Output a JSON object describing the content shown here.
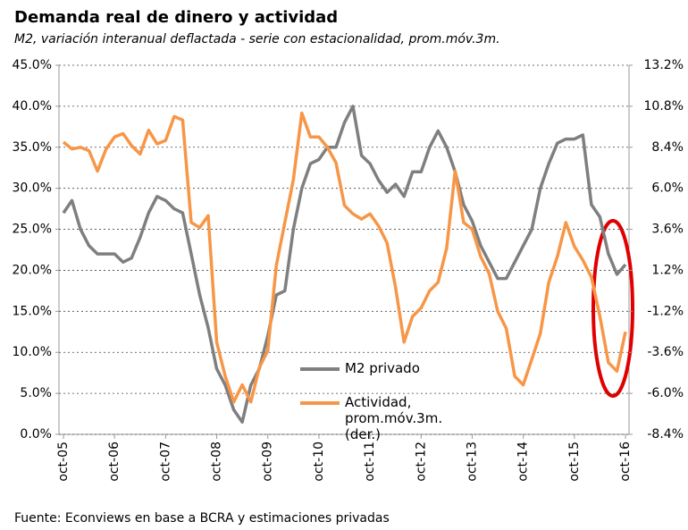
{
  "chart_data": {
    "type": "line",
    "title": "Demanda real de dinero y actividad",
    "subtitle": "M2, variación interanual deflactada - serie con estacionalidad, prom.móv.3m.",
    "source": "Fuente: Econviews en base a BCRA y estimaciones privadas",
    "categories": [
      "oct-05",
      null,
      null,
      null,
      null,
      null,
      "oct-06",
      null,
      null,
      null,
      null,
      null,
      "oct-07",
      null,
      null,
      null,
      null,
      null,
      "oct-08",
      null,
      null,
      null,
      null,
      null,
      "oct-09",
      null,
      null,
      null,
      null,
      null,
      "oct-10",
      null,
      null,
      null,
      null,
      null,
      "oct-11",
      null,
      null,
      null,
      null,
      null,
      "oct-12",
      null,
      null,
      null,
      null,
      null,
      "oct-13",
      null,
      null,
      null,
      null,
      null,
      "oct-14",
      null,
      null,
      null,
      null,
      null,
      "oct-15",
      null,
      null,
      null,
      null,
      null,
      "oct-16"
    ],
    "series": [
      {
        "name": "M2 privado",
        "color": "#7f7f7f",
        "axis": "y",
        "values": [
          27,
          28.5,
          25,
          23,
          22,
          22,
          22,
          21,
          21.5,
          24,
          27,
          29,
          28.5,
          27.5,
          27,
          22,
          17,
          13,
          8,
          6,
          3,
          1.5,
          6,
          8,
          12,
          17,
          17.5,
          25,
          30,
          33,
          33.5,
          35,
          35,
          38,
          40,
          34,
          33,
          31,
          29.5,
          30.5,
          29,
          32,
          32,
          35,
          37,
          35,
          32,
          28,
          26,
          23,
          21,
          19,
          19,
          21,
          23,
          25,
          30,
          33,
          35.5,
          36,
          36,
          36.5,
          28,
          26.5,
          22,
          19.5,
          20.7
        ]
      },
      {
        "name": "Actividad, prom.móv.3m. (der.)",
        "color": "#f79646",
        "axis": "y2",
        "values": [
          8.7,
          8.3,
          8.4,
          8.2,
          7.0,
          8.3,
          9.0,
          9.2,
          8.5,
          8.0,
          9.4,
          8.6,
          8.8,
          10.2,
          10.0,
          4.0,
          3.7,
          4.4,
          -3.0,
          -5.0,
          -6.5,
          -5.5,
          -6.5,
          -4.5,
          -3.5,
          1.5,
          4,
          6.5,
          10.4,
          9.0,
          9.0,
          8.4,
          7.5,
          5.0,
          4.5,
          4.2,
          4.5,
          3.8,
          2.8,
          0.2,
          -3.0,
          -1.5,
          -1.0,
          0.0,
          0.5,
          2.5,
          7.0,
          4.0,
          3.6,
          2.0,
          1.0,
          -1.2,
          -2.2,
          -5.0,
          -5.5,
          -4.0,
          -2.5,
          0.5,
          2.0,
          4.0,
          2.6,
          1.8,
          0.8,
          -1.5,
          -4.2,
          -4.7,
          -2.4
        ]
      }
    ],
    "ylim": [
      0,
      45
    ],
    "yticks": [
      {
        "value": 0,
        "label": "0.0%"
      },
      {
        "value": 5,
        "label": "5.0%"
      },
      {
        "value": 10,
        "label": "10.0%"
      },
      {
        "value": 15,
        "label": "15.0%"
      },
      {
        "value": 20,
        "label": "20.0%"
      },
      {
        "value": 25,
        "label": "25.0%"
      },
      {
        "value": 30,
        "label": "30.0%"
      },
      {
        "value": 35,
        "label": "35.0%"
      },
      {
        "value": 40,
        "label": "40.0%"
      },
      {
        "value": 45,
        "label": "45.0%"
      }
    ],
    "y2lim": [
      -8.4,
      13.2
    ],
    "y2ticks": [
      {
        "value": -8.4,
        "label": "-8.4%"
      },
      {
        "value": -6,
        "label": "-6.0%"
      },
      {
        "value": -3.6,
        "label": "-3.6%"
      },
      {
        "value": -1.2,
        "label": "-1.2%"
      },
      {
        "value": 1.2,
        "label": "1.2%"
      },
      {
        "value": 3.6,
        "label": "3.6%"
      },
      {
        "value": 6,
        "label": "6.0%"
      },
      {
        "value": 8.4,
        "label": "8.4%"
      },
      {
        "value": 10.8,
        "label": "10.8%"
      },
      {
        "value": 13.2,
        "label": "13.2%"
      }
    ],
    "grid": true
  }
}
